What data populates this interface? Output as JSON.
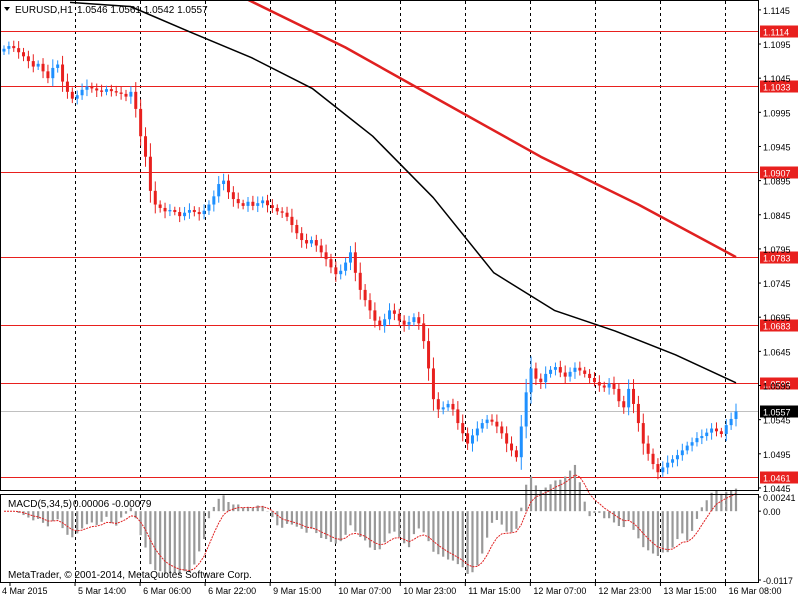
{
  "symbol_header": {
    "symbol": "EURUSD,H1",
    "ohlc": "1.0546 1.0561 1.0542 1.0557"
  },
  "macd_header": {
    "label": "MACD(5,34,5)",
    "values": "0.00006 -0.00079"
  },
  "copyright": "MetaTrader, © 2001-2014, MetaQuotes Software Corp.",
  "colors": {
    "background": "#ffffff",
    "bull": "#1e90ff",
    "bear": "#e8201e",
    "hline": "#e8201e",
    "ma_slow": "#e02020",
    "ma_fast": "#000000",
    "macd_hist": "#999999",
    "macd_signal": "#e02020",
    "grid": "#000000"
  },
  "chart_data": [
    {
      "type": "candlestick",
      "title": "EURUSD,H1",
      "timeframe": "H1",
      "x_tick_labels": [
        "4 Mar 2015",
        "5 Mar 14:00",
        "6 Mar 06:00",
        "6 Mar 22:00",
        "9 Mar 15:00",
        "10 Mar 07:00",
        "10 Mar 23:00",
        "11 Mar 15:00",
        "12 Mar 07:00",
        "12 Mar 23:00",
        "13 Mar 15:00",
        "16 Mar 08:00"
      ],
      "ylim": [
        1.0442,
        1.1158
      ],
      "y_tick_labels": [
        "1.1145",
        "1.1095",
        "1.1045",
        "1.0995",
        "1.0945",
        "1.0895",
        "1.0845",
        "1.0795",
        "1.0745",
        "1.0695",
        "1.0645",
        "1.0595",
        "1.0545",
        "1.0495",
        "1.0445"
      ],
      "horizontal_levels": [
        1.1114,
        1.1033,
        1.0907,
        1.0783,
        1.0683,
        1.0599,
        1.0461
      ],
      "horizontal_level_labels": [
        "1.1114",
        "1.1033",
        "1.0907",
        "1.0783",
        "1.0683",
        "1.0599",
        "1.0461"
      ],
      "current_price": 1.0557,
      "current_price_label": "1.0557",
      "close_series": [
        1.1088,
        1.1092,
        1.1089,
        1.1083,
        1.1077,
        1.107,
        1.1062,
        1.1066,
        1.1055,
        1.1045,
        1.106,
        1.1065,
        1.104,
        1.1025,
        1.1015,
        1.102,
        1.1028,
        1.1033,
        1.103,
        1.1027,
        1.1025,
        1.1029,
        1.1026,
        1.1024,
        1.1022,
        1.1018,
        1.1025,
        1.1,
        1.096,
        1.093,
        1.088,
        1.086,
        1.0855,
        1.085,
        1.0852,
        1.0849,
        1.0843,
        1.0848,
        1.0852,
        1.0849,
        1.0846,
        1.0851,
        1.086,
        1.0872,
        1.089,
        1.0895,
        1.0878,
        1.0868,
        1.0862,
        1.0858,
        1.0864,
        1.0858,
        1.0862,
        1.0866,
        1.0859,
        1.0855,
        1.085,
        1.0848,
        1.0842,
        1.083,
        1.0818,
        1.0808,
        1.0803,
        1.0808,
        1.08,
        1.079,
        1.078,
        1.0768,
        1.0758,
        1.0763,
        1.0775,
        1.079,
        1.076,
        1.0735,
        1.072,
        1.0705,
        1.069,
        1.0682,
        1.0692,
        1.0705,
        1.07,
        1.069,
        1.0684,
        1.0688,
        1.0695,
        1.0686,
        1.066,
        1.062,
        1.0575,
        1.056,
        1.0563,
        1.0568,
        1.056,
        1.054,
        1.0525,
        1.051,
        1.0522,
        1.0532,
        1.054,
        1.0545,
        1.0542,
        1.0535,
        1.0525,
        1.051,
        1.05,
        1.049,
        1.0535,
        1.0585,
        1.062,
        1.0605,
        1.06,
        1.0612,
        1.0618,
        1.0622,
        1.0614,
        1.0608,
        1.0615,
        1.0621,
        1.0617,
        1.0612,
        1.0606,
        1.06,
        1.0595,
        1.0592,
        1.0598,
        1.059,
        1.0572,
        1.0563,
        1.059,
        1.0568,
        1.054,
        1.051,
        1.0495,
        1.048,
        1.0468,
        1.0475,
        1.0482,
        1.0487,
        1.0493,
        1.05,
        1.0507,
        1.0512,
        1.0518,
        1.0521,
        1.0526,
        1.0532,
        1.0528,
        1.0524,
        1.0537,
        1.0546,
        1.0557
      ],
      "ma_slow": [
        1.119,
        1.116,
        1.109,
        1.101,
        1.093,
        1.086,
        1.0783
      ],
      "ma_fast": [
        1.1156,
        1.115,
        1.1112,
        1.1075,
        1.103,
        1.096,
        1.087,
        1.076,
        1.0705,
        1.0675,
        1.064,
        1.0599
      ],
      "macd": {
        "label": "MACD(5,34,5)",
        "main": 6e-05,
        "signal": -0.00079,
        "ylim": [
          -0.0117,
          0.00241
        ],
        "y_tick_labels": [
          "0.00241",
          "0.00",
          "-0.0117"
        ]
      }
    }
  ]
}
